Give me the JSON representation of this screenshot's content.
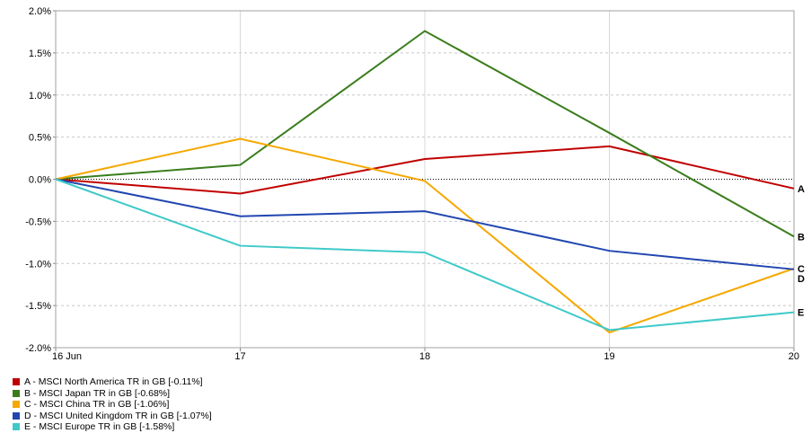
{
  "chart_data": {
    "type": "line",
    "x": [
      "16 Jun",
      "17",
      "18",
      "19",
      "20"
    ],
    "ylim": [
      -2.0,
      2.0
    ],
    "yticks": [
      2.0,
      1.5,
      1.0,
      0.5,
      0.0,
      -0.5,
      -1.0,
      -1.5,
      -2.0
    ],
    "ytick_labels": [
      "2.0%",
      "1.5%",
      "1.0%",
      "0.5%",
      "0.0%",
      "-0.5%",
      "-1.0%",
      "-1.5%",
      "-2.0%"
    ],
    "grid": true,
    "legend_position": "bottom-left",
    "series": [
      {
        "id": "A",
        "name": "A - MSCI North America TR in GB [-0.11%]",
        "color": "#c00000",
        "values": [
          0.0,
          -0.17,
          0.24,
          0.39,
          -0.11
        ]
      },
      {
        "id": "B",
        "name": "B - MSCI Japan TR in GB [-0.68%]",
        "color": "#3a7d1c",
        "values": [
          0.0,
          0.17,
          1.76,
          0.55,
          -0.68
        ]
      },
      {
        "id": "C",
        "name": "C - MSCI China TR in GB [-1.06%]",
        "color": "#f5a800",
        "values": [
          0.0,
          0.48,
          -0.02,
          -1.82,
          -1.06
        ]
      },
      {
        "id": "D",
        "name": "D - MSCI United Kingdom TR in GB [-1.07%]",
        "color": "#2146b0",
        "values": [
          0.0,
          -0.44,
          -0.38,
          -0.85,
          -1.07
        ]
      },
      {
        "id": "E",
        "name": "E - MSCI Europe TR in GB [-1.58%]",
        "color": "#3fc9c9",
        "values": [
          0.0,
          -0.79,
          -0.87,
          -1.79,
          -1.58
        ]
      }
    ]
  }
}
